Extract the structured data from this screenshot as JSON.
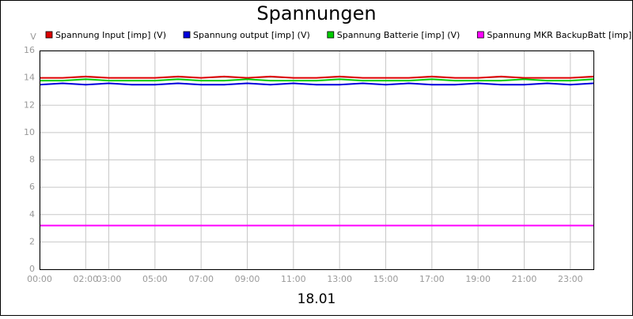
{
  "chart_data": {
    "type": "line",
    "title": "Spannungen",
    "ylabel": "V",
    "xlabel": "18.01",
    "x": [
      0,
      1,
      2,
      3,
      4,
      5,
      6,
      7,
      8,
      9,
      10,
      11,
      12,
      13,
      14,
      15,
      16,
      17,
      18,
      19,
      20,
      21,
      22,
      23,
      24
    ],
    "series": [
      {
        "name": "Spannung Input [imp] (V)",
        "color": "#dd0000",
        "values": [
          14.0,
          14.0,
          14.1,
          14.0,
          14.0,
          14.0,
          14.1,
          14.0,
          14.1,
          14.0,
          14.1,
          14.0,
          14.0,
          14.1,
          14.0,
          14.0,
          14.0,
          14.1,
          14.0,
          14.0,
          14.1,
          14.0,
          14.0,
          14.0,
          14.1
        ]
      },
      {
        "name": "Spannung output [imp] (V)",
        "color": "#0000dd",
        "values": [
          13.5,
          13.6,
          13.5,
          13.6,
          13.5,
          13.5,
          13.6,
          13.5,
          13.5,
          13.6,
          13.5,
          13.6,
          13.5,
          13.5,
          13.6,
          13.5,
          13.6,
          13.5,
          13.5,
          13.6,
          13.5,
          13.5,
          13.6,
          13.5,
          13.6
        ]
      },
      {
        "name": "Spannung Batterie [imp] (V)",
        "color": "#00cc00",
        "values": [
          13.8,
          13.8,
          13.9,
          13.8,
          13.8,
          13.8,
          13.9,
          13.8,
          13.8,
          13.9,
          13.8,
          13.8,
          13.8,
          13.9,
          13.8,
          13.8,
          13.8,
          13.9,
          13.8,
          13.8,
          13.8,
          13.9,
          13.8,
          13.8,
          13.9
        ]
      },
      {
        "name": "Spannung MKR BackupBatt [imp] (V)",
        "color": "#ff00ff",
        "values": [
          3.2,
          3.2,
          3.2,
          3.2,
          3.2,
          3.2,
          3.2,
          3.2,
          3.2,
          3.2,
          3.2,
          3.2,
          3.2,
          3.2,
          3.2,
          3.2,
          3.2,
          3.2,
          3.2,
          3.2,
          3.2,
          3.2,
          3.2,
          3.2,
          3.2
        ]
      }
    ],
    "xlim": [
      0,
      24
    ],
    "xticks": [
      {
        "value": 0,
        "label": "00:00"
      },
      {
        "value": 2,
        "label": "02:00"
      },
      {
        "value": 3,
        "label": "03:00"
      },
      {
        "value": 5,
        "label": "05:00"
      },
      {
        "value": 7,
        "label": "07:00"
      },
      {
        "value": 9,
        "label": "09:00"
      },
      {
        "value": 11,
        "label": "11:00"
      },
      {
        "value": 13,
        "label": "13:00"
      },
      {
        "value": 15,
        "label": "15:00"
      },
      {
        "value": 17,
        "label": "17:00"
      },
      {
        "value": 19,
        "label": "19:00"
      },
      {
        "value": 21,
        "label": "21:00"
      },
      {
        "value": 23,
        "label": "23:00"
      }
    ],
    "ylim": [
      0,
      16
    ],
    "yticks": [
      0,
      2,
      4,
      6,
      8,
      10,
      12,
      14,
      16
    ],
    "grid": true
  }
}
